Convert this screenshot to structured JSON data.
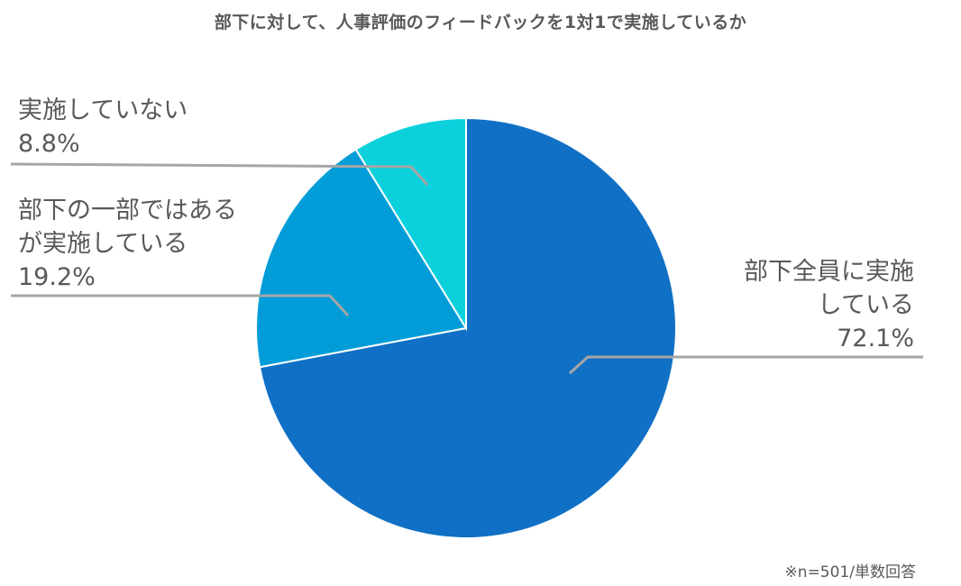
{
  "chart_data": {
    "type": "pie",
    "title": "部下に対して、人事評価のフィードバックを1対1で実施しているか",
    "slices": [
      {
        "label_line1": "部下全員に実施",
        "label_line2": "している",
        "value": 72.1,
        "value_label": "72.1%",
        "color": "#1070C5"
      },
      {
        "label_line1": "部下の一部ではある",
        "label_line2": "が実施している",
        "value": 19.2,
        "value_label": "19.2%",
        "color": "#029DD8"
      },
      {
        "label_line1": "実施していない",
        "label_line2": "",
        "value": 8.8,
        "value_label": "8.8%",
        "color": "#0CD1DD"
      }
    ],
    "start_angle_deg": 0,
    "direction": "clockwise",
    "legend": "none",
    "footnote": "※n=501/単数回答"
  }
}
